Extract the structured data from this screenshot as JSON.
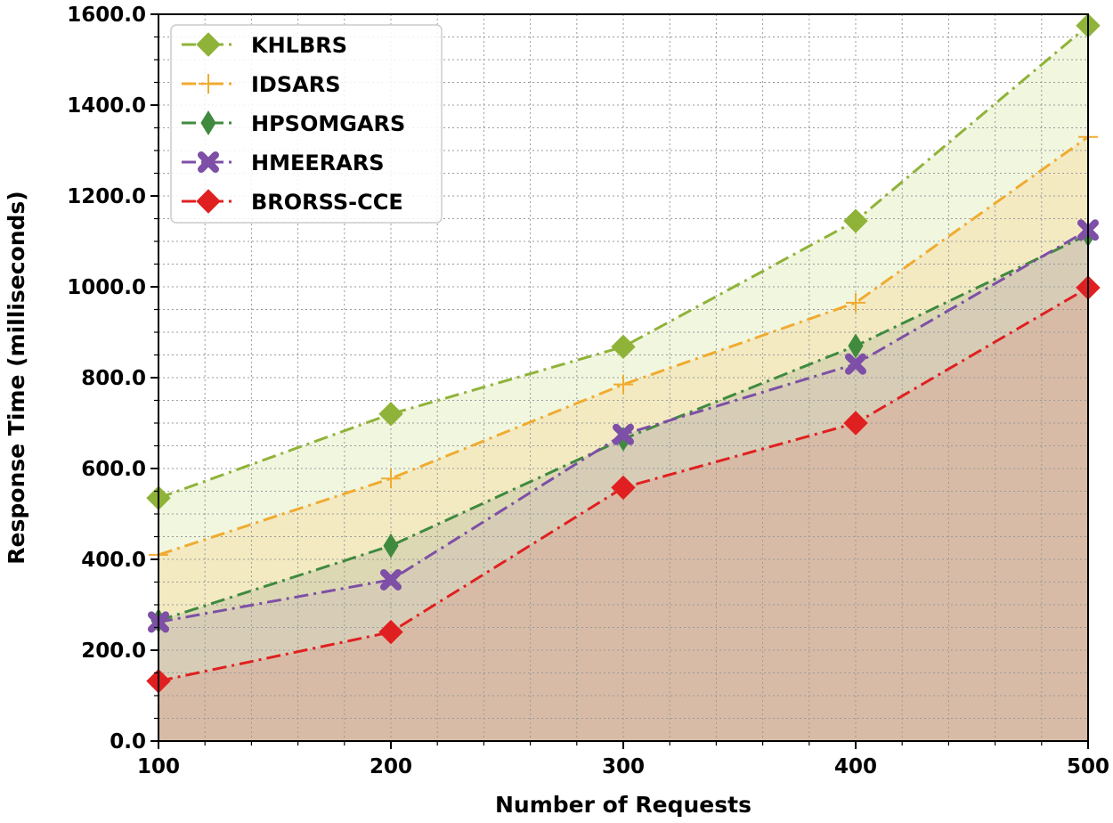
{
  "chart_data": {
    "type": "area",
    "title": "",
    "xlabel": "Number of Requests",
    "ylabel": "Response Time (milliseconds)",
    "x": [
      100,
      200,
      300,
      400,
      500
    ],
    "xticks": [
      "100",
      "200",
      "300",
      "400",
      "500"
    ],
    "yticks": [
      "0.0",
      "200.0",
      "400.0",
      "600.0",
      "800.0",
      "1000.0",
      "1200.0",
      "1400.0",
      "1600.0"
    ],
    "xlim": [
      100,
      500
    ],
    "ylim": [
      0,
      1600
    ],
    "grid": true,
    "legend_position": "top-left",
    "series": [
      {
        "name": "KHLBRS",
        "values": [
          535,
          720,
          868,
          1145,
          1575
        ],
        "color": "#8fb339",
        "marker": "diamond",
        "line_style": "dash-dot",
        "fill": "#eef4d9"
      },
      {
        "name": "IDSARS",
        "values": [
          410,
          578,
          785,
          965,
          1330
        ],
        "color": "#f0ab30",
        "marker": "plus",
        "line_style": "dash-dot",
        "fill": "#f3e7bd"
      },
      {
        "name": "HPSOMGARS",
        "values": [
          265,
          430,
          665,
          870,
          1115
        ],
        "color": "#3f8a3f",
        "marker": "thin-diamond",
        "line_style": "dash-dot",
        "fill": "#d7d5b0"
      },
      {
        "name": "HMEERARS",
        "values": [
          262,
          355,
          675,
          830,
          1125
        ],
        "color": "#7e4fa6",
        "marker": "x",
        "line_style": "dash-dot",
        "fill": "#d6cbb7"
      },
      {
        "name": "BRORSS-CCE",
        "values": [
          132,
          240,
          558,
          700,
          998
        ],
        "color": "#e02020",
        "marker": "diamond",
        "line_style": "dash-dot",
        "fill": "#d8b7a3"
      }
    ]
  }
}
